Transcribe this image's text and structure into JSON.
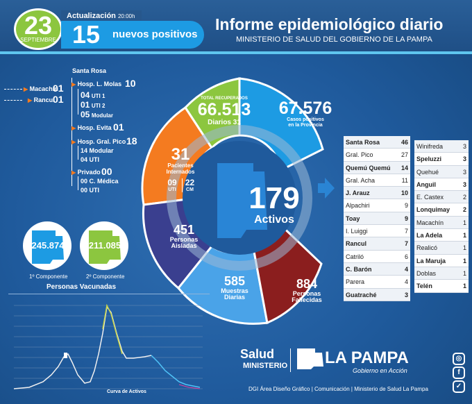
{
  "header": {
    "day": "23",
    "month": "SEPTIEMBRE",
    "update_label": "Actualización",
    "update_time": "20:00h",
    "new_positives_count": "15",
    "new_positives_label": "nuevos positivos",
    "title": "Informe epidemiológico diario",
    "subtitle": "MINISTERIO DE SALUD DEL GOBIERNO DE LA PAMPA"
  },
  "tree": {
    "santa_rosa": "Santa Rosa",
    "macachin": "Macachín",
    "macachin_n": "01",
    "rancul": "Rancul",
    "rancul_n": "01",
    "molas": "Hosp. L. Molas",
    "molas_n": "10",
    "molas_uti1": "04",
    "molas_uti1_l": "UTI 1",
    "molas_uti2": "01",
    "molas_uti2_l": "UTI 2",
    "molas_mod": "05",
    "molas_mod_l": "Modular",
    "evita": "Hosp. Evita",
    "evita_n": "01",
    "pico": "Hosp. Gral. Pico",
    "pico_n": "18",
    "pico_mod": "14 Modular",
    "pico_uti": "04 UTI",
    "privado": "Privado",
    "privado_n": "00",
    "priv_cm": "00 C. Médica",
    "priv_uti": "00 UTI"
  },
  "wheel": {
    "recovered_label": "TOTAL RECUPERADOS",
    "recovered": "66.513",
    "recovered_daily_label": "Diarios",
    "recovered_daily": "31",
    "positive_total": "67.576",
    "positive_label1": "Casos positivos",
    "positive_label2": "en la Provincia",
    "interned": "31",
    "interned_label1": "Pacientes",
    "interned_label2": "Internados",
    "uti": "09",
    "uti_label": "UTI",
    "cm": "22",
    "cm_label": "CM",
    "active": "179",
    "active_label": "Activos",
    "isolated": "451",
    "isolated_label1": "Personas",
    "isolated_label2": "Aisladas",
    "samples": "585",
    "samples_label1": "Muestras",
    "samples_label2": "Diarias",
    "deaths": "884",
    "deaths_label1": "Personas",
    "deaths_label2": "Fallecidas"
  },
  "localities_left": [
    {
      "name": "Santa Rosa",
      "value": "46",
      "bold": true
    },
    {
      "name": "Gral. Pico",
      "value": "27",
      "bold": false
    },
    {
      "name": "Quemú Quemú",
      "value": "14",
      "bold": true
    },
    {
      "name": "Gral. Acha",
      "value": "11",
      "bold": false
    },
    {
      "name": "J. Arauz",
      "value": "10",
      "bold": true
    },
    {
      "name": "Alpachiri",
      "value": "9",
      "bold": false
    },
    {
      "name": "Toay",
      "value": "9",
      "bold": true
    },
    {
      "name": "I. Luiggi",
      "value": "7",
      "bold": false
    },
    {
      "name": "Rancul",
      "value": "7",
      "bold": true
    },
    {
      "name": "Catriló",
      "value": "6",
      "bold": false
    },
    {
      "name": "C. Barón",
      "value": "4",
      "bold": true
    },
    {
      "name": "Parera",
      "value": "4",
      "bold": false
    },
    {
      "name": "Guatraché",
      "value": "3",
      "bold": true
    }
  ],
  "localities_right": [
    {
      "name": "Winifreda",
      "value": "3",
      "bold": false
    },
    {
      "name": "Speluzzi",
      "value": "3",
      "bold": true
    },
    {
      "name": "Quehué",
      "value": "3",
      "bold": false
    },
    {
      "name": "Anguil",
      "value": "3",
      "bold": true
    },
    {
      "name": "E. Castex",
      "value": "2",
      "bold": false
    },
    {
      "name": "Lonquimay",
      "value": "2",
      "bold": true
    },
    {
      "name": "Macachín",
      "value": "1",
      "bold": false
    },
    {
      "name": "La Adela",
      "value": "1",
      "bold": true
    },
    {
      "name": "Realicó",
      "value": "1",
      "bold": false
    },
    {
      "name": "La Maruja",
      "value": "1",
      "bold": true
    },
    {
      "name": "Doblas",
      "value": "1",
      "bold": false
    },
    {
      "name": "Telén",
      "value": "1",
      "bold": true
    }
  ],
  "vaccines": {
    "first": "245.874",
    "first_label": "1º Componente",
    "second": "211.085",
    "second_label": "2º Componente",
    "title": "Personas Vacunadas"
  },
  "chart": {
    "caption": "Curva de Activos"
  },
  "brand": {
    "salud": "Salud",
    "ministerio": "MINISTERIO",
    "la_pampa": "LA PAMPA",
    "tagline": "Gobierno en Acción",
    "footer": "DGI Área Diseño Gráfico  | Comunicación | Ministerio de Salud La Pampa"
  },
  "social": {
    "instagram": "instagram-icon",
    "facebook": "facebook-icon",
    "twitter": "twitter-icon"
  },
  "colors": {
    "green": "#8cc63f",
    "orange": "#f47b20",
    "cyan": "#1d9be3",
    "purple": "#3a3f8f",
    "red": "#8b1e1e"
  }
}
